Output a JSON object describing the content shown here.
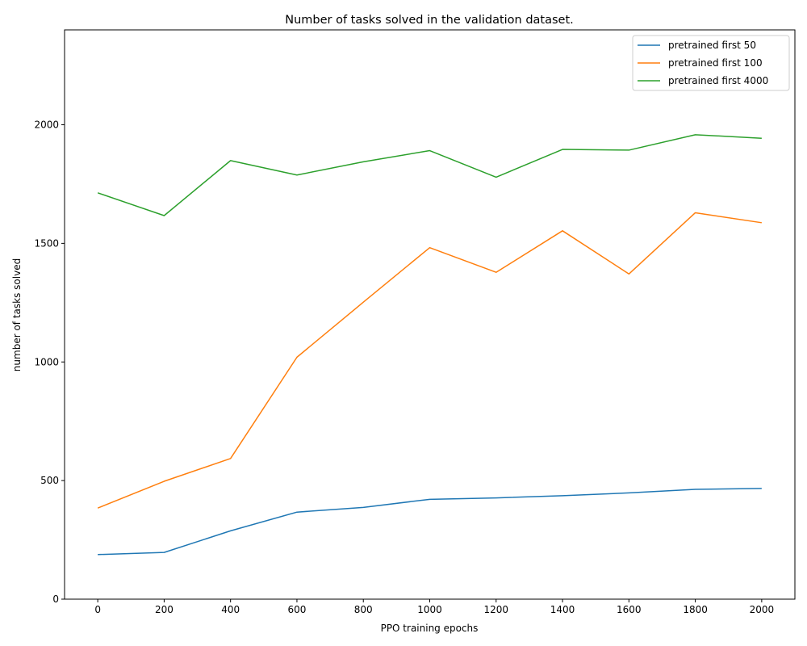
{
  "chart_data": {
    "type": "line",
    "title": "Number of tasks solved in the validation dataset.",
    "xlabel": "PPO training epochs",
    "ylabel": "number of tasks solved",
    "x": [
      0,
      200,
      400,
      600,
      800,
      1000,
      1200,
      1400,
      1600,
      1800,
      2000
    ],
    "xlim": [
      -100,
      2100
    ],
    "ylim": [
      0,
      2400
    ],
    "xticks": [
      0,
      200,
      400,
      600,
      800,
      1000,
      1200,
      1400,
      1600,
      1800,
      2000
    ],
    "yticks": [
      0,
      500,
      1000,
      1500,
      2000
    ],
    "grid": false,
    "legend_position": "top-right",
    "series": [
      {
        "name": "pretrained first 50",
        "color": "#1f77b4",
        "values": [
          188,
          197,
          288,
          367,
          387,
          421,
          427,
          436,
          448,
          463,
          467
        ]
      },
      {
        "name": "pretrained first 100",
        "color": "#ff7f0e",
        "values": [
          384,
          497,
          593,
          1020,
          1252,
          1482,
          1378,
          1553,
          1371,
          1629,
          1587
        ]
      },
      {
        "name": "pretrained first 4000",
        "color": "#2ca02c",
        "values": [
          1713,
          1617,
          1849,
          1788,
          1844,
          1891,
          1779,
          1896,
          1893,
          1958,
          1943
        ]
      }
    ]
  }
}
